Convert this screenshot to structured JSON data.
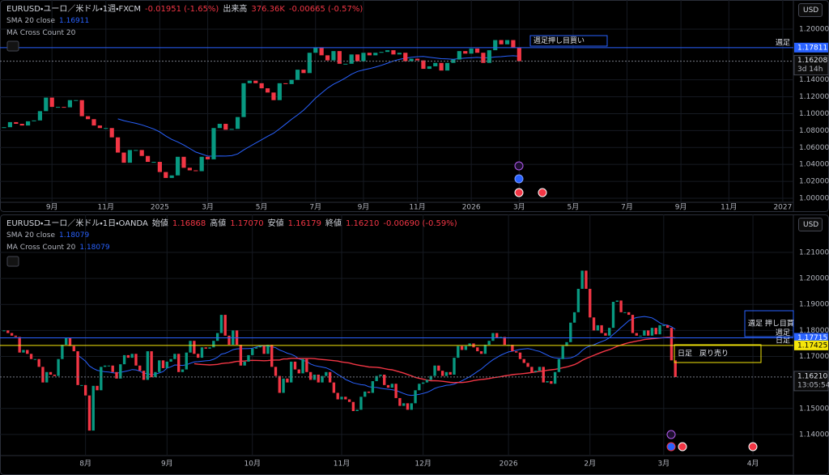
{
  "chart_data": [
    {
      "type": "candlestick",
      "title": "EURUSD・ユーロ／米ドル・1週・FXCM",
      "header_items": [
        {
          "text": "-0.01951 (-1.65%)",
          "color": "#f23645"
        },
        {
          "text": "出来高",
          "color": "#d1d4dc"
        },
        {
          "text": "376.36K",
          "color": "#f23645"
        },
        {
          "text": "-0.00665 (-0.57%)",
          "color": "#f23645"
        }
      ],
      "indicators": [
        {
          "name": "SMA 20 close",
          "value": "1.16911",
          "color": "#2962ff"
        },
        {
          "name": "MA Cross Count 20"
        }
      ],
      "currency": "USD",
      "up_color": "#089981",
      "down_color": "#f23645",
      "values": [
        1.084,
        1.09,
        1.088,
        1.086,
        1.091,
        1.092,
        1.103,
        1.119,
        1.108,
        1.108,
        1.1075,
        1.116,
        1.116,
        1.097,
        1.0935,
        1.086,
        1.083,
        1.083,
        1.072,
        1.054,
        1.042,
        1.057,
        1.057,
        1.05,
        1.043,
        1.043,
        1.031,
        1.024,
        1.027,
        1.049,
        1.036,
        1.033,
        1.032,
        1.049,
        1.046,
        1.083,
        1.088,
        1.081,
        1.082,
        1.096,
        1.136,
        1.139,
        1.136,
        1.13,
        1.125,
        1.116,
        1.136,
        1.135,
        1.14,
        1.152,
        1.148,
        1.172,
        1.178,
        1.169,
        1.163,
        1.174,
        1.159,
        1.159,
        1.17,
        1.162,
        1.172,
        1.169,
        1.172,
        1.173,
        1.175,
        1.17,
        1.172,
        1.162,
        1.165,
        1.163,
        1.153,
        1.156,
        1.16,
        1.151,
        1.16,
        1.164,
        1.174,
        1.171,
        1.177,
        1.172,
        1.16,
        1.175,
        1.187,
        1.182,
        1.187,
        1.178,
        1.16208
      ],
      "xlim": [
        0,
        131.5
      ],
      "xticks": [
        {
          "value": 8,
          "label": "9月"
        },
        {
          "value": 17,
          "label": "11月"
        },
        {
          "value": 26,
          "label": "2025"
        },
        {
          "value": 34,
          "label": "3月"
        },
        {
          "value": 43,
          "label": "5月"
        },
        {
          "value": 52,
          "label": "7月"
        },
        {
          "value": 60,
          "label": "9月"
        },
        {
          "value": 69,
          "label": "11月"
        },
        {
          "value": 78,
          "label": "2026"
        },
        {
          "value": 86,
          "label": "3月"
        },
        {
          "value": 95,
          "label": "5月"
        },
        {
          "value": 104,
          "label": "7月"
        },
        {
          "value": 113,
          "label": "9月"
        },
        {
          "value": 121,
          "label": "11月"
        },
        {
          "value": 130,
          "label": "2027"
        }
      ],
      "ylim": [
        0.9952,
        1.2344
      ],
      "yticks": [
        {
          "value": 1.2,
          "label": "1.20000"
        },
        {
          "value": 1.14,
          "label": "1.14000"
        },
        {
          "value": 1.12,
          "label": "1.12000"
        },
        {
          "value": 1.1,
          "label": "1.10000"
        },
        {
          "value": 1.08,
          "label": "1.08000"
        },
        {
          "value": 1.06,
          "label": "1.06000"
        },
        {
          "value": 1.04,
          "label": "1.04000"
        },
        {
          "value": 1.02,
          "label": "1.02000"
        },
        {
          "value": 1.0,
          "label": "1.00000"
        }
      ],
      "price_lines": [
        {
          "value": 1.17811,
          "label": "1.17811",
          "color": "#2962ff",
          "tag": "週足"
        },
        {
          "value": 1.16208,
          "label": "1.16208",
          "color": "#787b86",
          "countdown": "3d 14h"
        }
      ],
      "annotations": [
        {
          "text": "週足押し目買い",
          "color": "#2962ff"
        }
      ]
    },
    {
      "type": "candlestick",
      "title": "EURUSD・ユーロ／米ドル・1日・OANDA",
      "header_items": [
        {
          "text": "始値",
          "color": "#d1d4dc"
        },
        {
          "text": "1.16868",
          "color": "#f23645"
        },
        {
          "text": "高値",
          "color": "#d1d4dc"
        },
        {
          "text": "1.17070",
          "color": "#f23645"
        },
        {
          "text": "安値",
          "color": "#d1d4dc"
        },
        {
          "text": "1.16179",
          "color": "#f23645"
        },
        {
          "text": "終値",
          "color": "#d1d4dc"
        },
        {
          "text": "1.16210",
          "color": "#f23645"
        },
        {
          "text": "-0.00690 (-0.59%)",
          "color": "#f23645"
        }
      ],
      "indicators": [
        {
          "name": "SMA 20 close",
          "value": "1.18079",
          "color": "#2962ff"
        },
        {
          "name": "MA Cross Count 20",
          "value": "1.18079",
          "color": "#2962ff"
        }
      ],
      "currency": "USD",
      "up_color": "#089981",
      "down_color": "#f23645",
      "values": [
        1.18,
        1.179,
        1.178,
        1.1775,
        1.1715,
        1.1725,
        1.171,
        1.169,
        1.169,
        1.166,
        1.16,
        1.164,
        1.163,
        1.1625,
        1.169,
        1.1745,
        1.177,
        1.174,
        1.172,
        1.159,
        1.159,
        1.155,
        1.1415,
        1.1587,
        1.157,
        1.166,
        1.1665,
        1.1665,
        1.164,
        1.1615,
        1.167,
        1.1705,
        1.1695,
        1.171,
        1.1665,
        1.1645,
        1.161,
        1.172,
        1.162,
        1.164,
        1.1685,
        1.1655,
        1.168,
        1.169,
        1.171,
        1.164,
        1.165,
        1.1715,
        1.176,
        1.171,
        1.1695,
        1.1735,
        1.173,
        1.1735,
        1.176,
        1.179,
        1.186,
        1.178,
        1.1745,
        1.18,
        1.1745,
        1.1665,
        1.168,
        1.1705,
        1.173,
        1.1735,
        1.174,
        1.171,
        1.1745,
        1.166,
        1.1625,
        1.156,
        1.1615,
        1.16,
        1.168,
        1.165,
        1.1635,
        1.169,
        1.164,
        1.161,
        1.163,
        1.16,
        1.1625,
        1.164,
        1.16,
        1.156,
        1.1535,
        1.1545,
        1.1535,
        1.1525,
        1.149,
        1.1495,
        1.1545,
        1.1565,
        1.156,
        1.1605,
        1.1625,
        1.163,
        1.159,
        1.158,
        1.1595,
        1.154,
        1.151,
        1.152,
        1.1495,
        1.152,
        1.157,
        1.1595,
        1.16,
        1.161,
        1.1625,
        1.1665,
        1.1645,
        1.1625,
        1.164,
        1.163,
        1.1695,
        1.174,
        1.1725,
        1.174,
        1.175,
        1.1735,
        1.172,
        1.171,
        1.1745,
        1.176,
        1.179,
        1.177,
        1.1775,
        1.1745,
        1.1745,
        1.172,
        1.1715,
        1.169,
        1.1675,
        1.166,
        1.164,
        1.1645,
        1.166,
        1.16,
        1.1605,
        1.1595,
        1.164,
        1.169,
        1.174,
        1.1755,
        1.183,
        1.187,
        1.196,
        1.203,
        1.196,
        1.185,
        1.18,
        1.182,
        1.179,
        1.178,
        1.181,
        1.191,
        1.1915,
        1.187,
        1.187,
        1.186,
        1.179,
        1.178,
        1.178,
        1.18,
        1.178,
        1.181,
        1.1785,
        1.182,
        1.182,
        1.181,
        1.1685,
        1.1621
      ],
      "xlim": [
        0,
        203
      ],
      "xticks": [
        {
          "value": 21,
          "label": "8月"
        },
        {
          "value": 42,
          "label": "9月"
        },
        {
          "value": 64,
          "label": "10月"
        },
        {
          "value": 87,
          "label": "11月"
        },
        {
          "value": 108,
          "label": "12月"
        },
        {
          "value": 130,
          "label": "2026"
        },
        {
          "value": 151,
          "label": "2月"
        },
        {
          "value": 170,
          "label": "3月"
        },
        {
          "value": 193,
          "label": "4月"
        }
      ],
      "ylim": [
        1.1322,
        1.2246
      ],
      "yticks": [
        {
          "value": 1.21,
          "label": "1.21000"
        },
        {
          "value": 1.2,
          "label": "1.20000"
        },
        {
          "value": 1.19,
          "label": "1.19000"
        },
        {
          "value": 1.18,
          "label": "1.18000"
        },
        {
          "value": 1.17,
          "label": "1.17000"
        },
        {
          "value": 1.15,
          "label": "1.15000"
        },
        {
          "value": 1.14,
          "label": "1.14000"
        }
      ],
      "price_lines": [
        {
          "value": 1.17715,
          "label": "1.17715",
          "color": "#2962ff",
          "tag": "週足"
        },
        {
          "value": 1.17425,
          "label": "1.17425",
          "color": "#f5e60a",
          "tag": "日足"
        },
        {
          "value": 1.1621,
          "label": "1.16210",
          "color": "#787b86",
          "countdown": "13:05:54"
        }
      ],
      "annotations": [
        {
          "text": "週足 押し目買",
          "color": "#2962ff"
        },
        {
          "text": "日足　戻り売り",
          "color": "#f5e60a"
        }
      ]
    }
  ]
}
